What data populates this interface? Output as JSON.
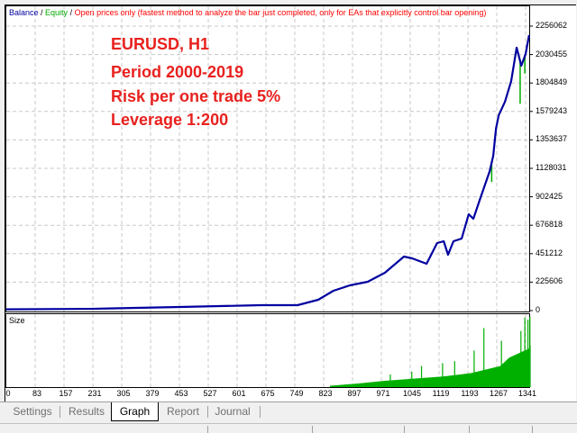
{
  "legend": {
    "balance": "Balance",
    "sep1": " / ",
    "equity": "Equity",
    "sep2": " / ",
    "model": "Open prices only (fastest method to analyze the bar just completed, only for EAs that explicitly control bar opening)"
  },
  "annotations": [
    "EURUSD, H1",
    "Period 2000-2019",
    "Risk per one trade 5%",
    "Leverage 1:200"
  ],
  "colors": {
    "balance": "#0000a0",
    "equity": "#00aa00",
    "size": "#00b000",
    "annotation": "#e8211e",
    "model": "#ff0000"
  },
  "size_label": "Size",
  "tabs": [
    {
      "label": "Settings"
    },
    {
      "label": "Results"
    },
    {
      "label": "Graph",
      "active": true
    },
    {
      "label": "Report"
    },
    {
      "label": "Journal"
    }
  ],
  "chart_data": {
    "type": "line",
    "yticks": [
      "2256062",
      "2030455",
      "1804849",
      "1579243",
      "1353637",
      "1128031",
      "902425",
      "676818",
      "451212",
      "225606",
      "0"
    ],
    "ylim": [
      0,
      2256062
    ],
    "xticks": [
      "0",
      "83",
      "157",
      "231",
      "305",
      "379",
      "453",
      "527",
      "601",
      "675",
      "749",
      "823",
      "897",
      "971",
      "1045",
      "1119",
      "1193",
      "1267",
      "1341"
    ],
    "xlim": [
      0,
      1350
    ],
    "series": [
      {
        "name": "Balance",
        "points": [
          [
            0,
            10000
          ],
          [
            215,
            14000
          ],
          [
            446,
            28558
          ],
          [
            654,
            42836
          ],
          [
            747,
            42836
          ],
          [
            800,
            85673
          ],
          [
            839,
            157067
          ],
          [
            881,
            199903
          ],
          [
            927,
            228461
          ],
          [
            971,
            299855
          ],
          [
            1020,
            428364
          ],
          [
            1041,
            414085
          ],
          [
            1078,
            371249
          ],
          [
            1105,
            535455
          ],
          [
            1122,
            549734
          ],
          [
            1133,
            442643
          ],
          [
            1147,
            549734
          ],
          [
            1168,
            571152
          ],
          [
            1186,
            763916
          ],
          [
            1198,
            728219
          ],
          [
            1216,
            892425
          ],
          [
            1240,
            1106607
          ],
          [
            1249,
            1228000
          ],
          [
            1256,
            1442000
          ],
          [
            1263,
            1549000
          ],
          [
            1279,
            1656000
          ],
          [
            1295,
            1820000
          ],
          [
            1309,
            2085000
          ],
          [
            1321,
            1942000
          ],
          [
            1332,
            2035000
          ],
          [
            1341,
            2185000
          ]
        ]
      },
      {
        "name": "Equity",
        "dips": [
          [
            1245,
            1020000
          ],
          [
            1318,
            1640000
          ],
          [
            1330,
            1880000
          ]
        ]
      }
    ],
    "size_series": {
      "name": "Size",
      "relative_envelope": [
        [
          830,
          0.02
        ],
        [
          900,
          0.05
        ],
        [
          971,
          0.09
        ],
        [
          1045,
          0.12
        ],
        [
          1119,
          0.15
        ],
        [
          1193,
          0.2
        ],
        [
          1267,
          0.3
        ],
        [
          1290,
          0.42
        ],
        [
          1341,
          0.55
        ],
        [
          1345,
          0.6
        ]
      ],
      "spikes": [
        [
          985,
          0.18
        ],
        [
          1040,
          0.22
        ],
        [
          1065,
          0.3
        ],
        [
          1119,
          0.34
        ],
        [
          1150,
          0.37
        ],
        [
          1200,
          0.52
        ],
        [
          1225,
          0.84
        ],
        [
          1270,
          0.66
        ],
        [
          1320,
          0.8
        ],
        [
          1330,
          0.99
        ],
        [
          1338,
          0.96
        ],
        [
          1343,
          1.0
        ]
      ]
    }
  }
}
